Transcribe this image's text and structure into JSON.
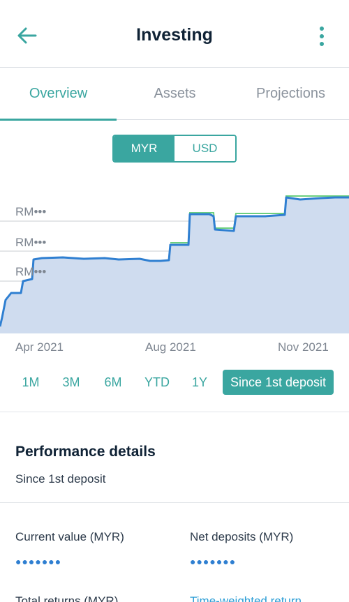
{
  "header": {
    "title": "Investing"
  },
  "tabs": [
    {
      "label": "Overview",
      "active": true
    },
    {
      "label": "Assets",
      "active": false
    },
    {
      "label": "Projections",
      "active": false
    }
  ],
  "currency": {
    "options": [
      "MYR",
      "USD"
    ],
    "selected": "MYR"
  },
  "chart": {
    "y_labels": [
      "RM•••",
      "RM•••",
      "RM•••"
    ],
    "x_labels": [
      "Apr 2021",
      "Aug 2021",
      "Nov 2021"
    ]
  },
  "chart_data": {
    "type": "area",
    "x": [
      "Mar 2021",
      "Apr 2021",
      "May 2021",
      "Jun 2021",
      "Jul 2021",
      "Aug 2021",
      "Sep 2021",
      "Oct 2021",
      "Nov 2021",
      "Dec 2021"
    ],
    "y_hidden": true,
    "series": [
      {
        "values": [
          1.0,
          3.1,
          4.6,
          4.6,
          4.5,
          5.4,
          6.6,
          6.5,
          8.0,
          8.1
        ]
      }
    ]
  },
  "ranges": [
    {
      "label": "1M",
      "active": false
    },
    {
      "label": "3M",
      "active": false
    },
    {
      "label": "6M",
      "active": false
    },
    {
      "label": "YTD",
      "active": false
    },
    {
      "label": "1Y",
      "active": false
    },
    {
      "label": "Since 1st deposit",
      "active": true
    }
  ],
  "performance": {
    "title": "Performance details",
    "subtitle": "Since 1st deposit",
    "current_value_label": "Current value (MYR)",
    "current_value": "●●●●●●●",
    "net_deposits_label": "Net deposits (MYR)",
    "net_deposits": "●●●●●●●",
    "total_returns_label": "Total returns (MYR)",
    "twr_label": "Time-weighted return"
  },
  "colors": {
    "accent": "#3aa6a0",
    "line": "#2f7fd1",
    "area": "#cfdcef",
    "deposit_line": "#6ccf7f"
  }
}
